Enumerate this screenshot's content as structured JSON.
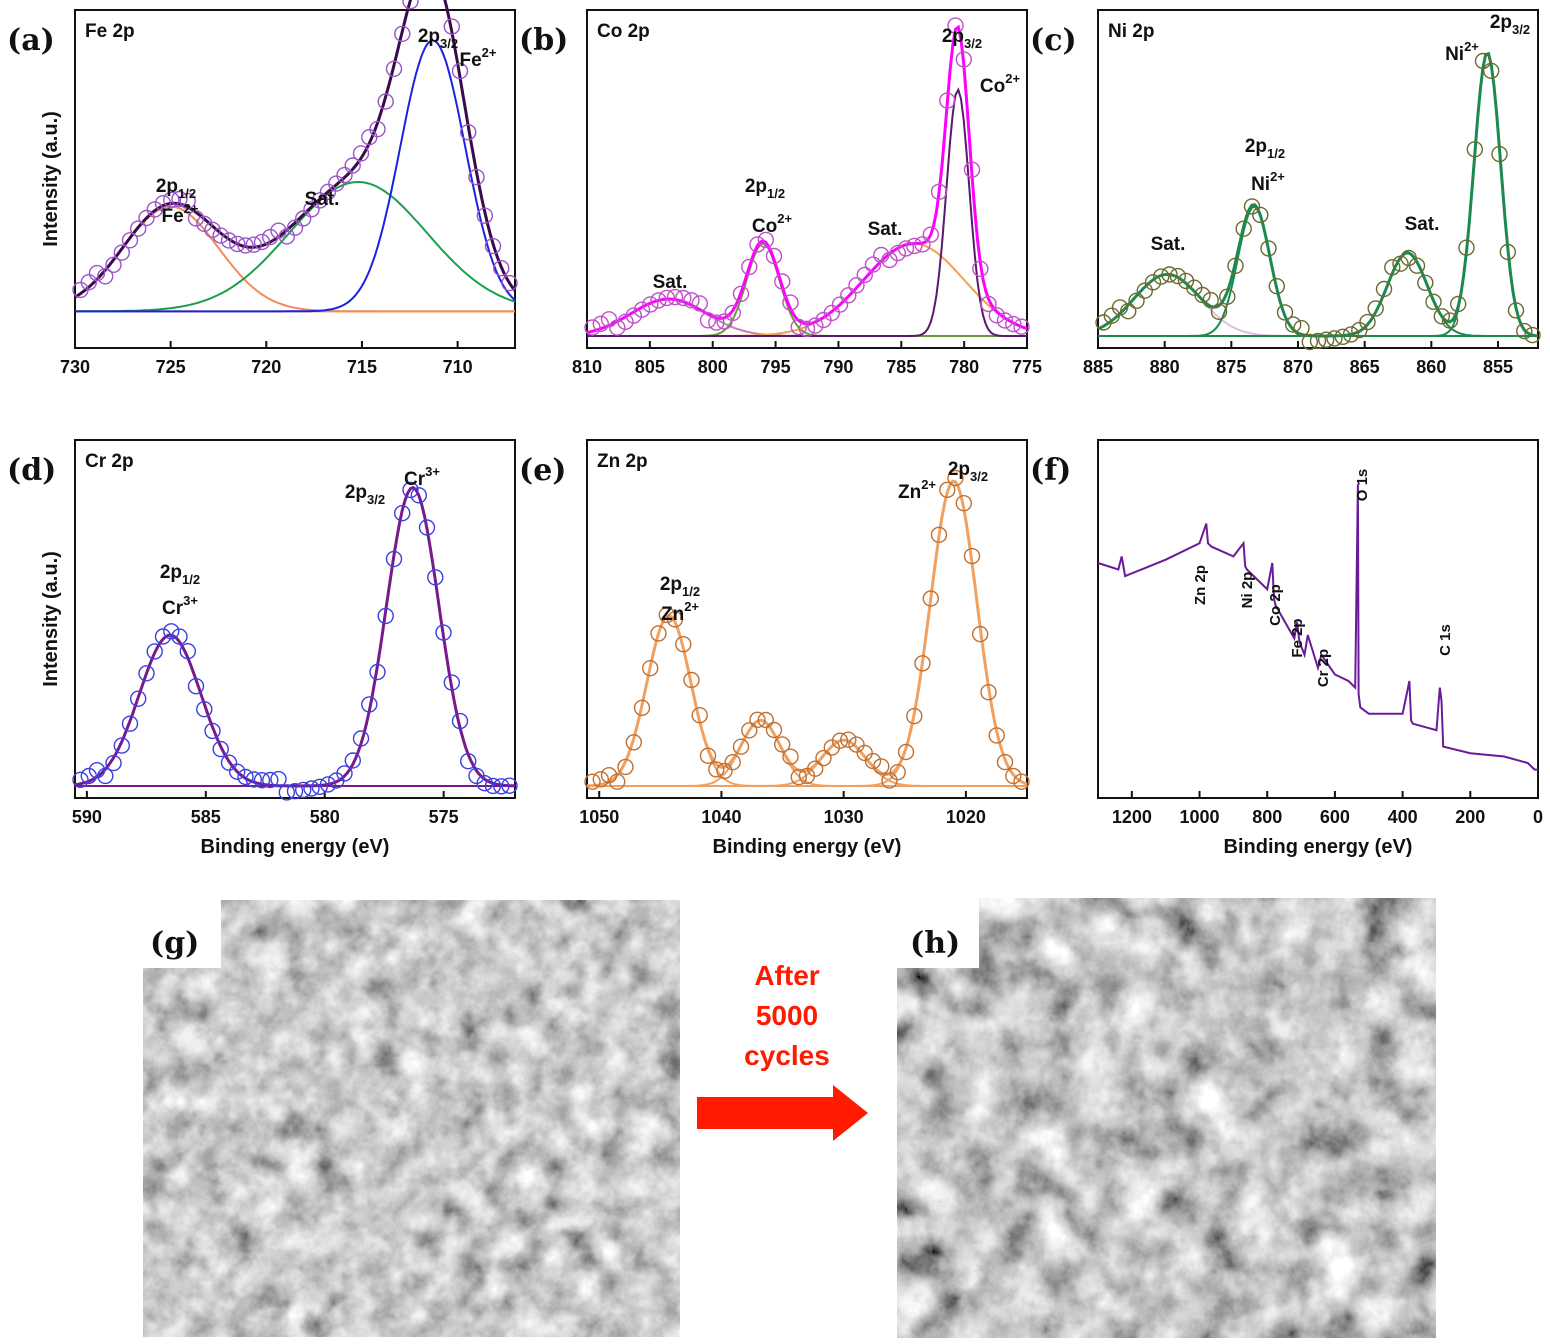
{
  "chart_data": [
    {
      "type": "line",
      "panel_label": "(a)",
      "title": "Fe 2p",
      "xlabel": "",
      "ylabel": "Intensity (a.u.)",
      "xlim": [
        730,
        707
      ],
      "x_ticks": [
        730,
        725,
        720,
        715,
        710
      ],
      "colors": {
        "measured": "#9a55c8",
        "envelope": "#3a0a4a",
        "background": "#f08c5a"
      },
      "measured_points": "open circles along envelope",
      "components": [
        {
          "center": 725.0,
          "height": 0.34,
          "width": 2.5,
          "color": "#f08c5a"
        },
        {
          "center": 715.2,
          "height": 0.42,
          "width": 3.6,
          "color": "#1aa04a"
        },
        {
          "center": 711.3,
          "height": 0.88,
          "width": 1.7,
          "color": "#1a24e0"
        }
      ],
      "baseline": 0.08,
      "annotations": [
        {
          "text": "2p",
          "sub": "1/2",
          "sup": ""
        },
        {
          "text": "Fe",
          "sub": "",
          "sup": "2+"
        },
        {
          "text": "Sat.",
          "sub": "",
          "sup": ""
        },
        {
          "text": "2p",
          "sub": "3/2",
          "sup": ""
        },
        {
          "text": "Fe",
          "sub": "",
          "sup": "2+"
        }
      ]
    },
    {
      "type": "line",
      "panel_label": "(b)",
      "title": "Co 2p",
      "xlabel": "",
      "ylabel": "",
      "xlim": [
        810,
        775
      ],
      "x_ticks": [
        810,
        805,
        800,
        795,
        790,
        785,
        780,
        775
      ],
      "colors": {
        "measured": "#c050c8",
        "envelope": "#ff00ff",
        "background": "#5a1a6a"
      },
      "components": [
        {
          "center": 803.5,
          "height": 0.12,
          "width": 3.0,
          "color": "#c080c0"
        },
        {
          "center": 796.0,
          "height": 0.3,
          "width": 1.3,
          "color": "#6a9a40"
        },
        {
          "center": 784.0,
          "height": 0.3,
          "width": 4.0,
          "color": "#f0a050"
        },
        {
          "center": 780.5,
          "height": 0.8,
          "width": 0.9,
          "color": "#5a1a6a"
        }
      ],
      "baseline": 0.0,
      "annotations": [
        {
          "text": "Sat.",
          "sub": "",
          "sup": ""
        },
        {
          "text": "2p",
          "sub": "1/2",
          "sup": ""
        },
        {
          "text": "Co",
          "sub": "",
          "sup": "2+"
        },
        {
          "text": "Sat.",
          "sub": "",
          "sup": ""
        },
        {
          "text": "2p",
          "sub": "3/2",
          "sup": ""
        },
        {
          "text": "Co",
          "sub": "",
          "sup": "2+"
        }
      ]
    },
    {
      "type": "line",
      "panel_label": "(c)",
      "title": "Ni 2p",
      "xlabel": "",
      "ylabel": "",
      "xlim": [
        885,
        852
      ],
      "x_ticks": [
        885,
        880,
        875,
        870,
        865,
        860,
        855
      ],
      "colors": {
        "measured": "#6a6a30",
        "envelope": "#1a8a50",
        "background": "#a04ab0"
      },
      "components": [
        {
          "center": 879.8,
          "height": 0.2,
          "width": 2.5,
          "color": "#e0c0e0"
        },
        {
          "center": 873.3,
          "height": 0.42,
          "width": 1.2,
          "color": "#1a8a50"
        },
        {
          "center": 861.8,
          "height": 0.27,
          "width": 1.5,
          "color": "#1a8a50"
        },
        {
          "center": 855.8,
          "height": 0.92,
          "width": 1.0,
          "color": "#1a8a50"
        }
      ],
      "baseline": 0.0,
      "annotations": [
        {
          "text": "Sat.",
          "sub": "",
          "sup": ""
        },
        {
          "text": "2p",
          "sub": "1/2",
          "sup": ""
        },
        {
          "text": "Ni",
          "sub": "",
          "sup": "2+"
        },
        {
          "text": "Sat.",
          "sub": "",
          "sup": ""
        },
        {
          "text": "2p",
          "sub": "3/2",
          "sup": ""
        },
        {
          "text": "Ni",
          "sub": "",
          "sup": "2+"
        }
      ]
    },
    {
      "type": "line",
      "panel_label": "(d)",
      "title": "Cr 2p",
      "xlabel": "Binding energy (eV)",
      "ylabel": "Intensity (a.u.)",
      "xlim": [
        590.5,
        572
      ],
      "x_ticks": [
        590,
        585,
        580,
        575
      ],
      "colors": {
        "measured": "#3a40e0",
        "envelope": "#7a1a8a",
        "background": "#f09040"
      },
      "components": [
        {
          "center": 586.5,
          "height": 0.46,
          "width": 1.3,
          "color": "#7a1a8a"
        },
        {
          "center": 576.3,
          "height": 0.91,
          "width": 1.1,
          "color": "#7a1a8a"
        }
      ],
      "baseline": 0.0,
      "annotations": [
        {
          "text": "2p",
          "sub": "1/2",
          "sup": ""
        },
        {
          "text": "Cr",
          "sub": "",
          "sup": "3+"
        },
        {
          "text": "2p",
          "sub": "3/2",
          "sup": ""
        },
        {
          "text": "Cr",
          "sub": "",
          "sup": "3+"
        }
      ]
    },
    {
      "type": "line",
      "panel_label": "(e)",
      "title": "Zn 2p",
      "xlabel": "Binding energy (eV)",
      "ylabel": "",
      "xlim": [
        1051,
        1015
      ],
      "x_ticks": [
        1050,
        1040,
        1030,
        1020
      ],
      "colors": {
        "measured": "#c07030",
        "envelope": "#f0a060",
        "background": "#6a1a8a"
      },
      "components": [
        {
          "center": 1044.3,
          "height": 0.52,
          "width": 1.8,
          "color": "#f0a060"
        },
        {
          "center": 1036.8,
          "height": 0.2,
          "width": 1.6,
          "color": "#f0a060"
        },
        {
          "center": 1030.0,
          "height": 0.14,
          "width": 1.8,
          "color": "#f0a060"
        },
        {
          "center": 1021.0,
          "height": 0.93,
          "width": 1.9,
          "color": "#f0a060"
        }
      ],
      "baseline": 0.0,
      "annotations": [
        {
          "text": "2p",
          "sub": "1/2",
          "sup": ""
        },
        {
          "text": "Zn",
          "sub": "",
          "sup": "2+"
        },
        {
          "text": "Zn",
          "sub": "",
          "sup": "2+"
        },
        {
          "text": "2p",
          "sub": "3/2",
          "sup": ""
        }
      ]
    },
    {
      "type": "line",
      "panel_label": "(f)",
      "title": "",
      "xlabel": "Binding energy (eV)",
      "ylabel": "",
      "xlim": [
        1300,
        0
      ],
      "x_ticks": [
        1200,
        1000,
        800,
        600,
        400,
        200,
        0
      ],
      "colors": {
        "line": "#6a1a9a"
      },
      "x": [
        1300,
        1240,
        1230,
        1220,
        1100,
        1000,
        980,
        975,
        965,
        900,
        870,
        865,
        860,
        800,
        785,
        780,
        775,
        720,
        712,
        705,
        690,
        680,
        650,
        640,
        600,
        560,
        540,
        532,
        530,
        525,
        500,
        400,
        380,
        375,
        370,
        300,
        290,
        285,
        280,
        200,
        100,
        30,
        10,
        0
      ],
      "y": [
        0.68,
        0.66,
        0.7,
        0.64,
        0.69,
        0.74,
        0.8,
        0.74,
        0.73,
        0.7,
        0.74,
        0.67,
        0.66,
        0.6,
        0.68,
        0.57,
        0.55,
        0.45,
        0.5,
        0.44,
        0.4,
        0.46,
        0.36,
        0.4,
        0.34,
        0.32,
        0.3,
        0.92,
        0.28,
        0.24,
        0.22,
        0.22,
        0.32,
        0.2,
        0.19,
        0.17,
        0.3,
        0.26,
        0.12,
        0.1,
        0.09,
        0.07,
        0.05,
        0.05
      ],
      "peak_labels": [
        "Zn 2p",
        "Ni 2p",
        "Co 2p",
        "Fe 2p",
        "Cr 2p",
        "O 1s",
        "C 1s"
      ]
    }
  ],
  "arrow_text": [
    "After",
    "5000",
    "cycles"
  ],
  "images": [
    {
      "panel_label": "(g)",
      "texture": "sem-nanoflakes"
    },
    {
      "panel_label": "(h)",
      "texture": "sem-after-cycling"
    }
  ]
}
